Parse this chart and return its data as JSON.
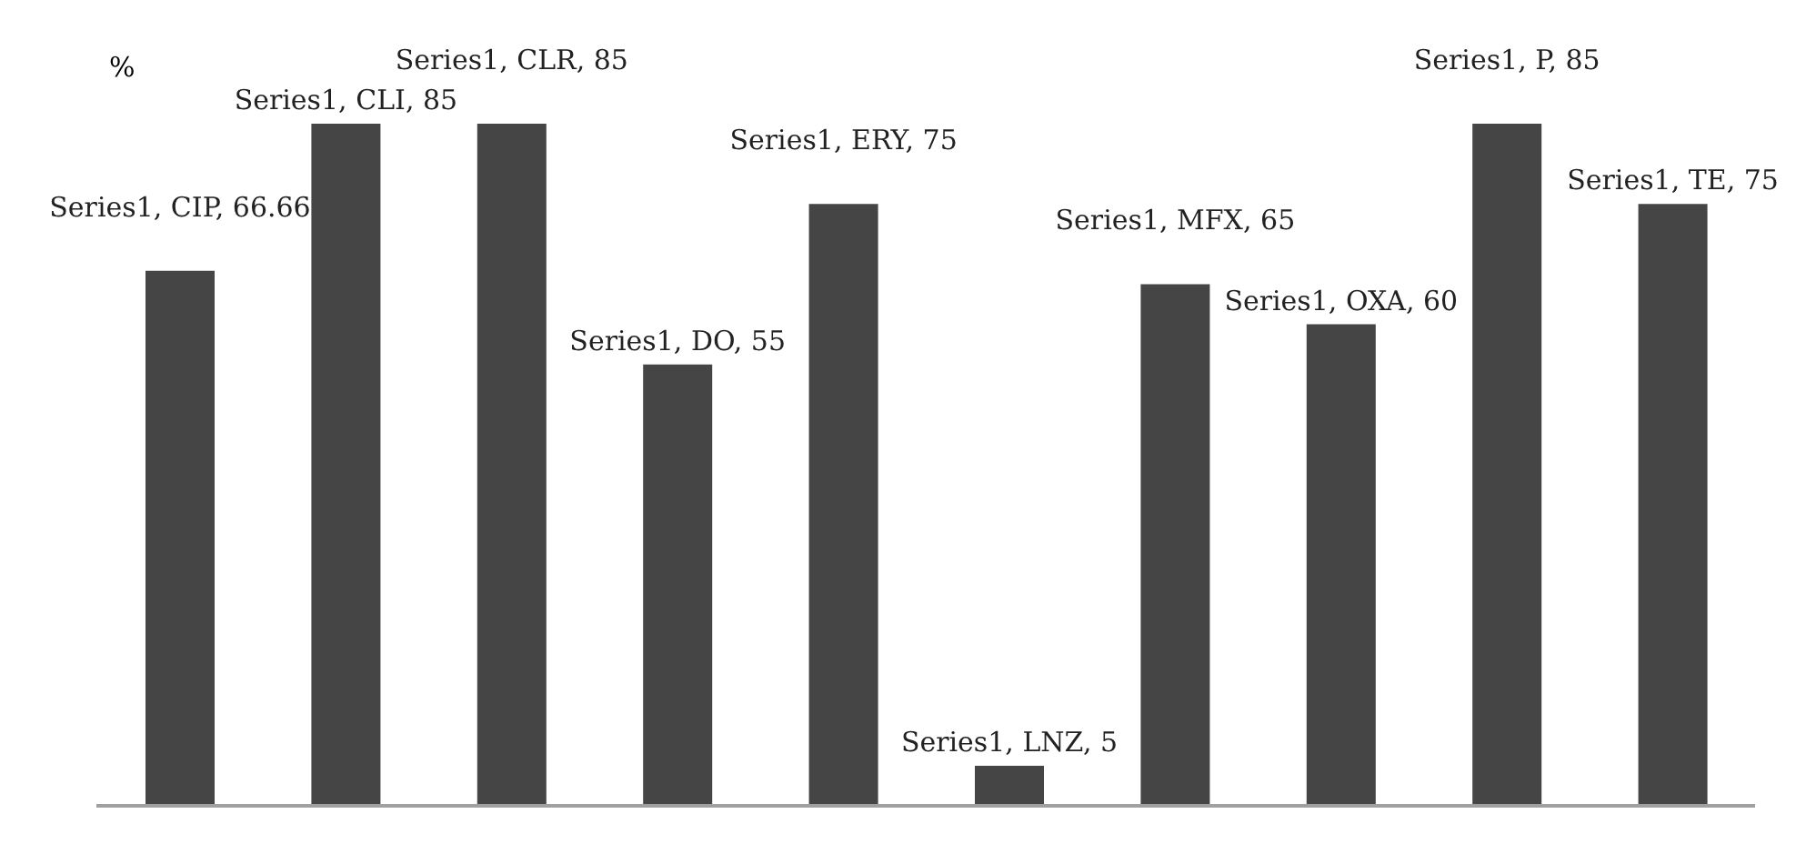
{
  "chart_data": {
    "type": "bar",
    "ylabel": "%",
    "categories": [
      null,
      null,
      null,
      null,
      null,
      null,
      null,
      null,
      null,
      null
    ],
    "series": [
      {
        "color": "#454545",
        "values": [
          66.66,
          85,
          85,
          55,
          75,
          5,
          65,
          60,
          85,
          75
        ],
        "value_labels": [
          "Series1, CIP, 66.66",
          "Series1, CLI, 85",
          "Series1, CLR, 85",
          "Series1, DO, 55",
          "Series1, ERY, 75",
          "Series1, LNZ, 5",
          "Series1, MFX, 65",
          "Series1, OXA, 60",
          "Series1, P, 85",
          "Series1, TE, 75"
        ]
      }
    ],
    "grid": false,
    "legend": false
  }
}
